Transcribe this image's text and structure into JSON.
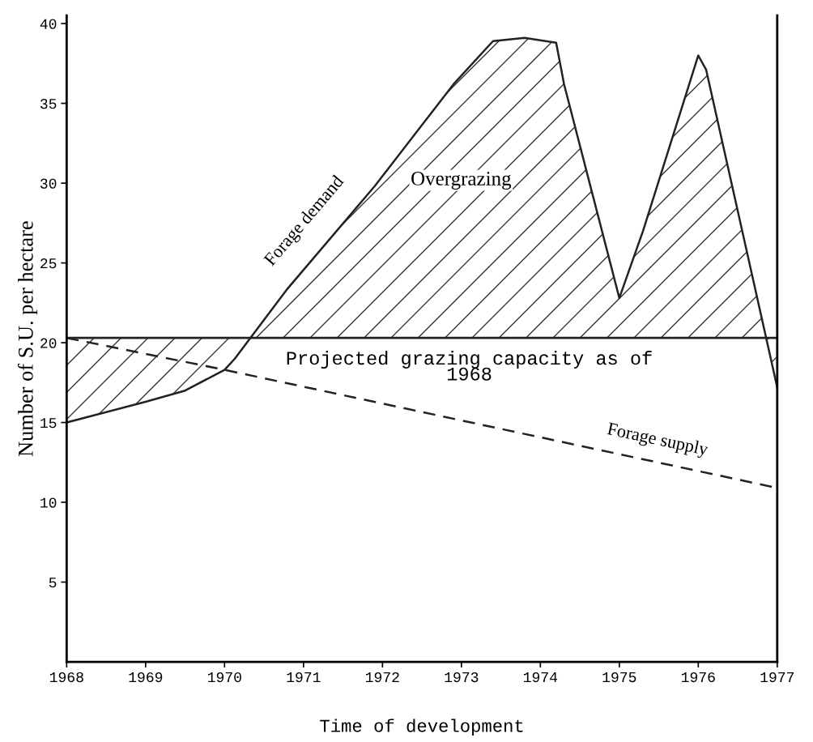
{
  "chart_data": {
    "type": "line",
    "xlabel": "Time of development",
    "ylabel": "Number of S.U. per hectare",
    "series": [
      {
        "name": "Forage demand",
        "color": "#222222",
        "line_style": "solid",
        "x": [
          1968,
          1969,
          1969.5,
          1970,
          1970.13,
          1970.8,
          1971.9,
          1972.9,
          1973.4,
          1973.8,
          1974.2,
          1974.3,
          1975,
          1975.3,
          1976,
          1976.1,
          1977
        ],
        "values": [
          15.0,
          16.3,
          17.0,
          18.3,
          19.0,
          23.4,
          29.8,
          36.2,
          38.9,
          39.1,
          38.8,
          36.2,
          22.8,
          27.0,
          38.0,
          37.1,
          17.2
        ]
      },
      {
        "name": "Forage supply",
        "color": "#222222",
        "line_style": "dashed",
        "x": [
          1968,
          1970,
          1977
        ],
        "values": [
          20.3,
          18.3,
          10.9
        ]
      }
    ],
    "ref_lines": [
      {
        "axis": "y",
        "value": 20.3,
        "label": "Projected grazing capacity as of\n1968",
        "color": "#222222",
        "line_style": "solid"
      }
    ],
    "annotations": [
      "Overgrazing"
    ],
    "xlim": [
      1968,
      1977
    ],
    "xticks": [
      1968,
      1969,
      1970,
      1971,
      1972,
      1973,
      1974,
      1975,
      1976,
      1977
    ],
    "ylim": [
      0,
      40.5
    ],
    "yticks": [
      5,
      10,
      15,
      20,
      25,
      30,
      35,
      40
    ],
    "grid": false,
    "legend": false,
    "marker": "none"
  }
}
